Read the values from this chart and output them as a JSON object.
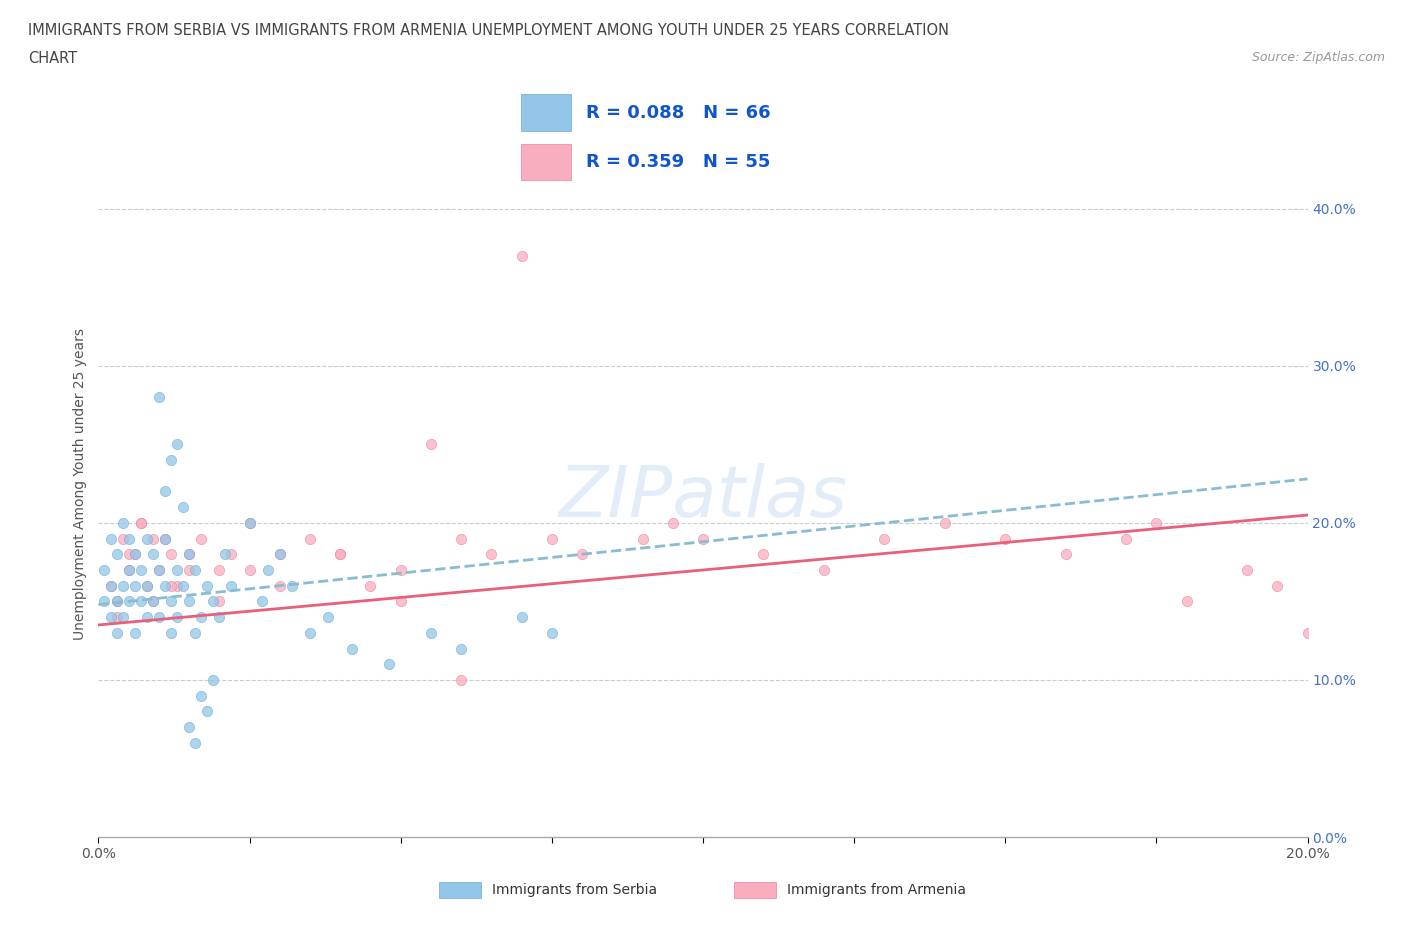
{
  "title_line1": "IMMIGRANTS FROM SERBIA VS IMMIGRANTS FROM ARMENIA UNEMPLOYMENT AMONG YOUTH UNDER 25 YEARS CORRELATION",
  "title_line2": "CHART",
  "source": "Source: ZipAtlas.com",
  "ylabel": "Unemployment Among Youth under 25 years",
  "legend_label1": "Immigrants from Serbia",
  "legend_label2": "Immigrants from Armenia",
  "R1": 0.088,
  "N1": 66,
  "R2": 0.359,
  "N2": 55,
  "color1": "#92C5E8",
  "color2": "#F9AEBF",
  "color1_edge": "#6AAED6",
  "color2_edge": "#F080A0",
  "trendline1_color": "#4472C4",
  "trendline2_color": "#E8607A",
  "watermark_color": "#C8DCF0",
  "watermark_text": "ZIPatlas",
  "xlim": [
    0.0,
    0.2
  ],
  "ylim": [
    0.0,
    0.45
  ],
  "xticks": [
    0.0,
    0.025,
    0.05,
    0.075,
    0.1,
    0.125,
    0.15,
    0.175,
    0.2
  ],
  "yticks": [
    0.0,
    0.1,
    0.2,
    0.3,
    0.4
  ],
  "serbia_x": [
    0.001,
    0.001,
    0.002,
    0.002,
    0.002,
    0.003,
    0.003,
    0.003,
    0.004,
    0.004,
    0.004,
    0.005,
    0.005,
    0.005,
    0.006,
    0.006,
    0.006,
    0.007,
    0.007,
    0.008,
    0.008,
    0.008,
    0.009,
    0.009,
    0.01,
    0.01,
    0.011,
    0.011,
    0.012,
    0.012,
    0.013,
    0.013,
    0.014,
    0.015,
    0.015,
    0.016,
    0.016,
    0.017,
    0.018,
    0.019,
    0.02,
    0.021,
    0.022,
    0.025,
    0.027,
    0.028,
    0.03,
    0.032,
    0.035,
    0.038,
    0.042,
    0.048,
    0.055,
    0.06,
    0.07,
    0.075,
    0.01,
    0.011,
    0.012,
    0.013,
    0.014,
    0.015,
    0.016,
    0.017,
    0.018,
    0.019
  ],
  "serbia_y": [
    0.15,
    0.17,
    0.14,
    0.16,
    0.19,
    0.13,
    0.18,
    0.15,
    0.16,
    0.2,
    0.14,
    0.17,
    0.15,
    0.19,
    0.16,
    0.13,
    0.18,
    0.15,
    0.17,
    0.14,
    0.19,
    0.16,
    0.15,
    0.18,
    0.14,
    0.17,
    0.16,
    0.19,
    0.15,
    0.13,
    0.17,
    0.14,
    0.16,
    0.15,
    0.18,
    0.13,
    0.17,
    0.14,
    0.16,
    0.15,
    0.14,
    0.18,
    0.16,
    0.2,
    0.15,
    0.17,
    0.18,
    0.16,
    0.13,
    0.14,
    0.12,
    0.11,
    0.13,
    0.12,
    0.14,
    0.13,
    0.28,
    0.22,
    0.24,
    0.25,
    0.21,
    0.07,
    0.06,
    0.09,
    0.08,
    0.1
  ],
  "armenia_x": [
    0.002,
    0.003,
    0.004,
    0.005,
    0.006,
    0.007,
    0.008,
    0.009,
    0.01,
    0.011,
    0.012,
    0.013,
    0.015,
    0.017,
    0.02,
    0.022,
    0.025,
    0.03,
    0.035,
    0.04,
    0.045,
    0.05,
    0.055,
    0.06,
    0.065,
    0.075,
    0.08,
    0.09,
    0.095,
    0.1,
    0.11,
    0.12,
    0.13,
    0.14,
    0.15,
    0.16,
    0.17,
    0.175,
    0.18,
    0.19,
    0.195,
    0.2,
    0.003,
    0.005,
    0.007,
    0.009,
    0.012,
    0.015,
    0.02,
    0.025,
    0.03,
    0.04,
    0.05,
    0.06,
    0.07
  ],
  "armenia_y": [
    0.16,
    0.15,
    0.19,
    0.17,
    0.18,
    0.2,
    0.16,
    0.15,
    0.17,
    0.19,
    0.18,
    0.16,
    0.17,
    0.19,
    0.15,
    0.18,
    0.17,
    0.18,
    0.19,
    0.18,
    0.16,
    0.17,
    0.25,
    0.19,
    0.18,
    0.19,
    0.18,
    0.19,
    0.2,
    0.19,
    0.18,
    0.17,
    0.19,
    0.2,
    0.19,
    0.18,
    0.19,
    0.2,
    0.15,
    0.17,
    0.16,
    0.13,
    0.14,
    0.18,
    0.2,
    0.19,
    0.16,
    0.18,
    0.17,
    0.2,
    0.16,
    0.18,
    0.15,
    0.1,
    0.37
  ]
}
